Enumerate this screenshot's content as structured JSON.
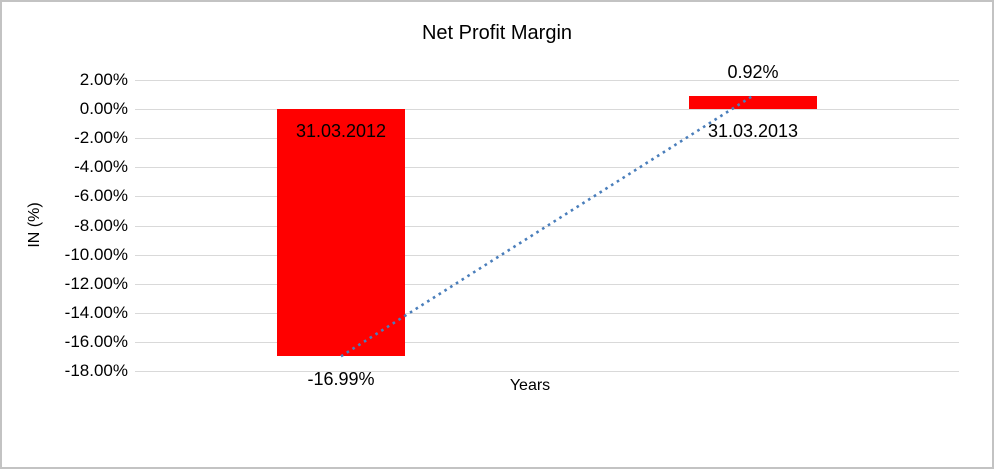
{
  "chart_data": {
    "type": "bar",
    "title": "Net Profit Margin",
    "xlabel": "Years",
    "ylabel": "IN (%)",
    "categories": [
      "31.03.2012",
      "31.03.2013"
    ],
    "values": [
      -16.99,
      0.92
    ],
    "data_labels": [
      "-16.99%",
      "0.92%"
    ],
    "ytick_labels": [
      "2.00%",
      "0.00%",
      "-2.00%",
      "-4.00%",
      "-6.00%",
      "-8.00%",
      "-10.00%",
      "-12.00%",
      "-14.00%",
      "-16.00%",
      "-18.00%"
    ],
    "ylim": [
      -18,
      2
    ],
    "ytick_step": 2,
    "grid": true,
    "legend_position": "none",
    "trendline": {
      "type": "linear",
      "style": "dotted",
      "color": "#4a7ebb"
    },
    "colors": {
      "bar": "#ff0000",
      "gridline": "#d9d9d9",
      "text": "#000000",
      "background": "#ffffff",
      "frame_border": "#c3c3c3"
    }
  }
}
